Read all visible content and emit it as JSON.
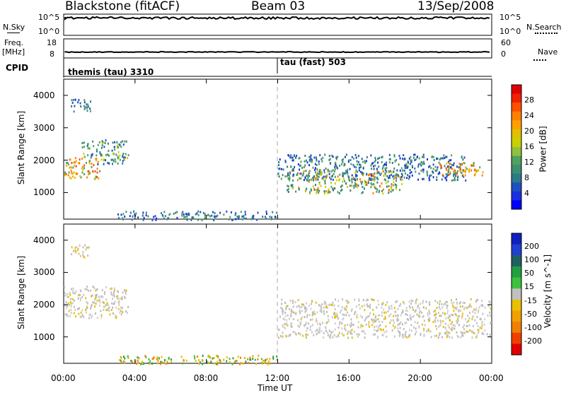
{
  "header": {
    "station": "Blackstone (fitACF)",
    "beam": "Beam 03",
    "date": "13/Sep/2008"
  },
  "params": {
    "nsky_label": "N.Sky",
    "nsky_ticks": [
      "10^5",
      "10^0"
    ],
    "nsearch_label": "N.Search",
    "nsearch_ticks": [
      "10^5",
      "10^0"
    ],
    "freq_label_line1": "Freq.",
    "freq_label_line2": "[MHz]",
    "freq_ticks": [
      "18",
      "8"
    ],
    "nave_label": "Nave",
    "nave_ticks": [
      "60",
      "0"
    ],
    "cpid_label": "CPID",
    "cpid_segments": [
      {
        "start_hour": 0.0,
        "label": "themis (tau) 3310"
      },
      {
        "start_hour": 12.0,
        "label": "tau (fast) 503"
      }
    ]
  },
  "colorbar_power": {
    "label": "Power [dB]",
    "ticks": [
      "28",
      "24",
      "20",
      "16",
      "12",
      "8",
      "4"
    ],
    "colors": [
      "#e00000",
      "#f02000",
      "#ff5000",
      "#ff8000",
      "#ffa000",
      "#e0c000",
      "#c8d000",
      "#90c040",
      "#50a060",
      "#3f8f6f",
      "#2a7a8a",
      "#2050c0",
      "#1a2fe0",
      "#0000ff"
    ]
  },
  "colorbar_velocity": {
    "label": "Velocity [m s^-1]",
    "ticks": [
      "200",
      "100",
      "50",
      "15",
      "-15",
      "-50",
      "-100",
      "-200"
    ],
    "colors": [
      "#1020c0",
      "#2040d0",
      "#206060",
      "#20a040",
      "#40c040",
      "#c0c0c0",
      "#e8c000",
      "#f0a000",
      "#f08000",
      "#f04000",
      "#e00000"
    ]
  },
  "chart_data": [
    {
      "type": "heatmap",
      "name": "power",
      "ylabel": "Slant Range [km]",
      "xlabel": "",
      "xlim": [
        0,
        24
      ],
      "ylim": [
        180,
        4500
      ],
      "yticks": [
        "4000",
        "3000",
        "2000",
        "1000"
      ],
      "xticks": [
        "00:00",
        "04:00",
        "08:00",
        "12:00",
        "16:00",
        "20:00",
        "00:00"
      ],
      "regions": [
        {
          "x": [
            0.0,
            2.0
          ],
          "y": [
            1450,
            2100
          ],
          "level": "orange"
        },
        {
          "x": [
            1.0,
            3.6
          ],
          "y": [
            1900,
            2650
          ],
          "level": "green-blue"
        },
        {
          "x": [
            0.4,
            1.5
          ],
          "y": [
            3500,
            3900
          ],
          "level": "blue"
        },
        {
          "x": [
            12.0,
            22.5
          ],
          "y": [
            1400,
            2200
          ],
          "level": "blue"
        },
        {
          "x": [
            12.5,
            19.0
          ],
          "y": [
            1000,
            1700
          ],
          "level": "green"
        },
        {
          "x": [
            21.0,
            23.5
          ],
          "y": [
            1550,
            1950
          ],
          "level": "orange"
        },
        {
          "x": [
            3.0,
            12.0
          ],
          "y": [
            180,
            450
          ],
          "level": "blue"
        }
      ]
    },
    {
      "type": "heatmap",
      "name": "velocity",
      "ylabel": "Slant Range [km]",
      "xlabel": "Time UT",
      "xlim": [
        0,
        24
      ],
      "ylim": [
        180,
        4500
      ],
      "yticks": [
        "4000",
        "3000",
        "2000",
        "1000"
      ],
      "xticks": [
        "00:00",
        "04:00",
        "08:00",
        "12:00",
        "16:00",
        "20:00",
        "00:00"
      ],
      "regions": [
        {
          "x": [
            0.0,
            3.6
          ],
          "y": [
            1600,
            2600
          ],
          "level": "grey"
        },
        {
          "x": [
            0.4,
            1.5
          ],
          "y": [
            3500,
            3900
          ],
          "level": "tan"
        },
        {
          "x": [
            12.0,
            24.0
          ],
          "y": [
            1000,
            2200
          ],
          "level": "grey"
        },
        {
          "x": [
            3.0,
            12.0
          ],
          "y": [
            180,
            450
          ],
          "level": "orange-green"
        }
      ]
    }
  ]
}
